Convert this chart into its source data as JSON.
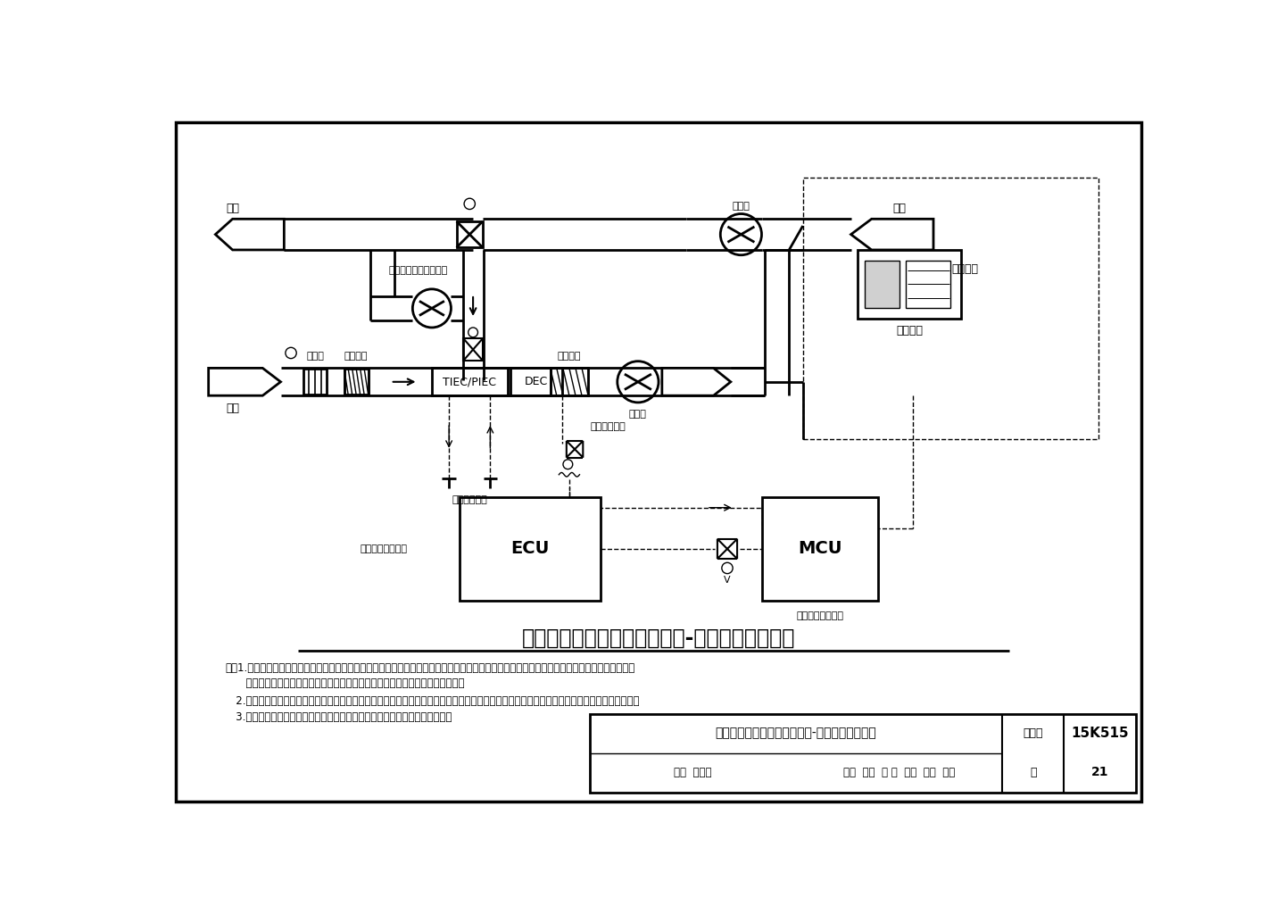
{
  "bg_color": "#ffffff",
  "title": "蒸发冷却与机械制冷联合空气-水空调系统流程图",
  "notes_line1": "注：1.根据使用条件优先单独运行蒸发冷却系统；蒸发冷却系统不能满足运行要求时单独运行机械制冷系统；在蒸发冷却系统不能满足运行要求时，",
  "notes_line2": "      也可适用与机械制冷冷冻水进行一定比例混合，以满足末端高温冷水供冷需求。",
  "notes_line3": "   2.图中空调房间显热末端为干式风机盘管，也可选择其他显热末端，如辐射末端等形式；如单独运行机械制冷系统，干式风机盘管应加装集水盘。",
  "notes_line4": "   3.间接蒸发冷却二次空气可采用室外新风、冷却后一次空气或回风三种形式。",
  "tb_title": "蒸发冷却与机械制冷联合空气-水空调系统流程图",
  "tb_tujihao": "图集号",
  "tb_value": "15K515",
  "tb_row2a": "审核  骆海川",
  "tb_row2b": "校对  汪超  以 起  设计  黄翔  李矩",
  "tb_page_label": "页",
  "tb_page_num": "21",
  "label_paifeng": "排风",
  "label_xinfeng": "新风",
  "label_huifeng": "回风",
  "label_huifengji": "回风机",
  "label_erjici": "间接蒸发冷却二次风机",
  "label_guolvqi": "过滤器",
  "label_yure": "预热盘管",
  "label_lenghot": "冷热盘管",
  "label_TIEC": "TIEC/PIEC",
  "label_DEC": "DEC",
  "label_zhijie": "直接蒸发冷却",
  "label_jianjie": "间接蒸发冷却",
  "label_song": "送风机",
  "label_fanjipan": "风机盘管",
  "label_kongtiao": "空调房间",
  "label_ECU": "ECU",
  "label_MCU": "MCU",
  "label_zfcl": "蒸发冷却冷水机组",
  "label_jxzl": "机械制冷冷水机组"
}
